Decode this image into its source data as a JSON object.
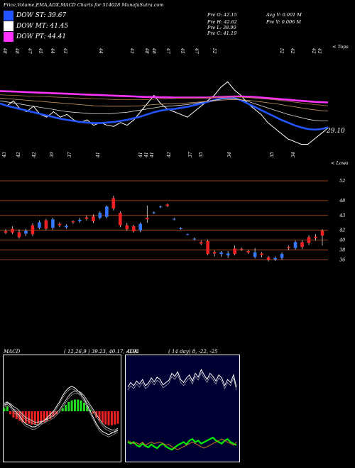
{
  "header": {
    "title": "Price,Volume,EMA,ADX,MACD Charts for 514028  MunafaSutra.com",
    "dma": [
      {
        "label": "DOW ST: 39.67",
        "color": "#2255ff"
      },
      {
        "label": "DOW MT: 41.45",
        "color": "#ffffff"
      },
      {
        "label": "DOW PT: 44.41",
        "color": "#ff33ff"
      }
    ],
    "ohlc": {
      "open": "Pre   O: 42.15",
      "high": "Pre   H: 42.62",
      "low": "Pre   L: 38.90",
      "close": "Pre   C: 41.19"
    },
    "volume": {
      "avg": "Avg V: 0.001 M",
      "pre": "Pre   V: 0.006  M"
    }
  },
  "chart_data": [
    {
      "type": "line",
      "panel": "price-ema",
      "labels": {
        "top_right": "< Tops",
        "bottom_right": "< Lows",
        "last_price": "29.10"
      },
      "top_ticks": [
        "48",
        "48",
        "47",
        "45",
        "44",
        "43",
        "44",
        "43",
        "48",
        "48",
        "47",
        "45",
        "47",
        "52",
        "52",
        "42",
        "42",
        "43"
      ],
      "bottom_ticks": [
        "43",
        "42",
        "42",
        "39",
        "37",
        "41",
        "41",
        "41",
        "41",
        "42",
        "37",
        "35",
        "34",
        "35",
        "34"
      ],
      "series": [
        {
          "color": "#ffffff",
          "values": [
            42,
            41.5,
            42.5,
            41,
            40.5,
            41.5,
            40,
            39.5,
            40.5,
            39.5,
            40,
            39,
            38.5,
            39,
            38,
            38.5,
            38,
            37.8,
            38.5,
            38,
            39,
            40.5,
            42,
            43.5,
            42,
            41,
            40.5,
            40,
            39.5,
            40.5,
            41.5,
            42.5,
            43.5,
            45,
            46,
            44.5,
            43.5,
            42,
            41,
            40,
            38.5,
            37.5,
            36.5,
            35.5,
            35,
            34.5,
            34.5,
            35.5,
            36.5,
            37.5
          ]
        },
        {
          "color": "#2255ff",
          "values": [
            42,
            41.6,
            41.3,
            41,
            40.7,
            40.4,
            40.1,
            39.8,
            39.5,
            39.2,
            39,
            38.8,
            38.6,
            38.5,
            38.4,
            38.4,
            38.5,
            38.6,
            38.8,
            39,
            39.3,
            39.6,
            40,
            40.4,
            40.7,
            40.9,
            41,
            41.2,
            41.4,
            41.7,
            42,
            42.3,
            42.6,
            42.9,
            43.1,
            43,
            42.6,
            42,
            41.4,
            40.8,
            40.2,
            39.6,
            39,
            38.5,
            38,
            37.6,
            37.3,
            37.2,
            37.3,
            37.6
          ]
        },
        {
          "color": "#dddddd",
          "values": [
            42.5,
            42.3,
            42.1,
            41.9,
            41.7,
            41.5,
            41.3,
            41.1,
            40.9,
            40.7,
            40.5,
            40.4,
            40.3,
            40.2,
            40.1,
            40.1,
            40.1,
            40.2,
            40.3,
            40.4,
            40.6,
            40.8,
            41,
            41.2,
            41.4,
            41.5,
            41.6,
            41.7,
            41.8,
            42,
            42.2,
            42.4,
            42.6,
            42.8,
            42.9,
            42.9,
            42.7,
            42.4,
            42,
            41.6,
            41.2,
            40.8,
            40.4,
            40,
            39.7,
            39.4,
            39.1,
            38.9,
            38.8,
            38.8
          ]
        },
        {
          "color": "#ff33ff",
          "values": [
            44.3,
            44.25,
            44.2,
            44.15,
            44.1,
            44.05,
            44,
            43.95,
            43.9,
            43.85,
            43.8,
            43.75,
            43.7,
            43.65,
            43.6,
            43.55,
            43.5,
            43.45,
            43.4,
            43.35,
            43.3,
            43.25,
            43.2,
            43.2,
            43.15,
            43.15,
            43.1,
            43.1,
            43.1,
            43.1,
            43.1,
            43.1,
            43.15,
            43.2,
            43.25,
            43.3,
            43.3,
            43.25,
            43.2,
            43.1,
            43,
            42.9,
            42.8,
            42.7,
            42.6,
            42.5,
            42.4,
            42.3,
            42.25,
            42.2
          ]
        },
        {
          "color": "#cc9966",
          "values": [
            43,
            42.9,
            42.8,
            42.7,
            42.6,
            42.5,
            42.4,
            42.3,
            42.2,
            42.1,
            42,
            41.9,
            41.8,
            41.7,
            41.6,
            41.55,
            41.5,
            41.5,
            41.5,
            41.5,
            41.55,
            41.6,
            41.7,
            41.8,
            41.9,
            41.95,
            42,
            42.05,
            42.1,
            42.2,
            42.3,
            42.4,
            42.5,
            42.6,
            42.7,
            42.75,
            42.7,
            42.6,
            42.45,
            42.3,
            42.15,
            42,
            41.8,
            41.6,
            41.4,
            41.2,
            41,
            40.85,
            40.7,
            40.6
          ]
        },
        {
          "color": "#aa7744",
          "values": [
            43.6,
            43.55,
            43.5,
            43.45,
            43.4,
            43.35,
            43.3,
            43.25,
            43.2,
            43.15,
            43.1,
            43.05,
            43,
            42.95,
            42.9,
            42.85,
            42.8,
            42.75,
            42.7,
            42.7,
            42.7,
            42.7,
            42.75,
            42.8,
            42.85,
            42.9,
            42.95,
            43,
            43,
            43,
            43,
            43.05,
            43.1,
            43.15,
            43.2,
            43.2,
            43.15,
            43.1,
            43,
            42.9,
            42.8,
            42.7,
            42.55,
            42.4,
            42.25,
            42.1,
            41.95,
            41.8,
            41.7,
            41.6
          ]
        }
      ],
      "ylim": [
        33,
        48
      ]
    },
    {
      "type": "bar",
      "panel": "candles",
      "gridlines": [
        52,
        48,
        45,
        42,
        40,
        38,
        36
      ],
      "axis_labels": [
        "52",
        "48",
        "43",
        "42",
        "40",
        "38",
        "36"
      ],
      "candles": [
        {
          "o": 41.5,
          "c": 41.8,
          "h": 42.2,
          "l": 41.2,
          "up": false
        },
        {
          "o": 41.5,
          "c": 42.3,
          "h": 42.8,
          "l": 41.2,
          "up": false
        },
        {
          "o": 40.6,
          "c": 41.6,
          "h": 42.2,
          "l": 40.3,
          "up": false
        },
        {
          "o": 41.9,
          "c": 41.3,
          "h": 42.3,
          "l": 40.8,
          "up": true
        },
        {
          "o": 43,
          "c": 41.2,
          "h": 43.4,
          "l": 40.8,
          "up": false
        },
        {
          "o": 42.5,
          "c": 43.6,
          "h": 44,
          "l": 42.2,
          "up": true
        },
        {
          "o": 44,
          "c": 42.3,
          "h": 44.3,
          "l": 42,
          "up": false
        },
        {
          "o": 42.5,
          "c": 44.2,
          "h": 44.5,
          "l": 42.1,
          "up": true
        },
        {
          "o": 43,
          "c": 43.3,
          "h": 43.6,
          "l": 42.6,
          "up": false
        },
        {
          "o": 42.6,
          "c": 42.9,
          "h": 43.2,
          "l": 42.3,
          "up": true
        },
        {
          "o": 43.8,
          "c": 43.6,
          "h": 44,
          "l": 43.3,
          "up": false
        },
        {
          "o": 44.1,
          "c": 43.8,
          "h": 44.5,
          "l": 43.5,
          "up": true
        },
        {
          "o": 44.3,
          "c": 44.6,
          "h": 45,
          "l": 44,
          "up": false
        },
        {
          "o": 43.8,
          "c": 44.8,
          "h": 45.2,
          "l": 43.4,
          "up": false
        },
        {
          "o": 44.5,
          "c": 45.5,
          "h": 45.8,
          "l": 44.2,
          "up": true
        },
        {
          "o": 44.7,
          "c": 46.8,
          "h": 47,
          "l": 44.4,
          "up": true
        },
        {
          "o": 48.5,
          "c": 46.4,
          "h": 49,
          "l": 46,
          "up": false
        },
        {
          "o": 45.5,
          "c": 43,
          "h": 45.8,
          "l": 42.6,
          "up": false
        },
        {
          "o": 43,
          "c": 42.2,
          "h": 43.5,
          "l": 41.9,
          "up": false
        },
        {
          "o": 42.8,
          "c": 41.8,
          "h": 43.1,
          "l": 41.5,
          "up": false
        },
        {
          "o": 42,
          "c": 43.3,
          "h": 43.6,
          "l": 41.6,
          "up": true
        },
        {
          "o": 44.5,
          "c": 44.2,
          "h": 47,
          "l": 43.5,
          "up": false
        },
        {
          "o": 45.6,
          "c": 45.5,
          "h": 45.8,
          "l": 45.3,
          "up": true
        },
        {
          "o": 46.8,
          "c": 46.7,
          "h": 47,
          "l": 46.5,
          "up": true
        },
        {
          "o": 47.2,
          "c": 46.9,
          "h": 47.4,
          "l": 46.7,
          "up": false
        },
        {
          "o": 44.3,
          "c": 44.2,
          "h": 44.5,
          "l": 44,
          "up": true
        },
        {
          "o": 42.4,
          "c": 42.3,
          "h": 42.6,
          "l": 42.1,
          "up": true
        },
        {
          "o": 41.2,
          "c": 41.1,
          "h": 41.3,
          "l": 41,
          "up": true
        },
        {
          "o": 40.3,
          "c": 40.2,
          "h": 40.5,
          "l": 40,
          "up": true
        },
        {
          "o": 39.6,
          "c": 39.3,
          "h": 39.9,
          "l": 39,
          "up": false
        },
        {
          "o": 39.8,
          "c": 37.2,
          "h": 40.1,
          "l": 36.9,
          "up": false
        },
        {
          "o": 37.6,
          "c": 37.3,
          "h": 37.9,
          "l": 36.7,
          "up": false
        },
        {
          "o": 37.2,
          "c": 37.5,
          "h": 37.8,
          "l": 36.6,
          "up": true
        },
        {
          "o": 36.9,
          "c": 37.3,
          "h": 37.8,
          "l": 36.4,
          "up": true
        },
        {
          "o": 38.3,
          "c": 37.2,
          "h": 38.9,
          "l": 36.9,
          "up": false
        },
        {
          "o": 38.1,
          "c": 38.2,
          "h": 38.5,
          "l": 37.8,
          "up": false
        },
        {
          "o": 37.5,
          "c": 37.8,
          "h": 38.1,
          "l": 37.2,
          "up": false
        },
        {
          "o": 37.5,
          "c": 36.6,
          "h": 38.4,
          "l": 36.3,
          "up": true
        },
        {
          "o": 37.3,
          "c": 37,
          "h": 37.6,
          "l": 36.5,
          "up": false
        },
        {
          "o": 36,
          "c": 36.5,
          "h": 36.8,
          "l": 35.7,
          "up": false
        },
        {
          "o": 36.1,
          "c": 36.4,
          "h": 36.7,
          "l": 35.8,
          "up": true
        },
        {
          "o": 37.2,
          "c": 36.4,
          "h": 37.5,
          "l": 36,
          "up": true
        },
        {
          "o": 38.6,
          "c": 38.4,
          "h": 38.9,
          "l": 38,
          "up": false
        },
        {
          "o": 38.4,
          "c": 39.6,
          "h": 39.9,
          "l": 38.1,
          "up": true
        },
        {
          "o": 38.6,
          "c": 39.6,
          "h": 40,
          "l": 38.2,
          "up": false
        },
        {
          "o": 40.6,
          "c": 39.4,
          "h": 41,
          "l": 39,
          "up": false
        },
        {
          "o": 40.7,
          "c": 40.4,
          "h": 41.2,
          "l": 39.9,
          "up": false
        },
        {
          "o": 41.9,
          "c": 40.9,
          "h": 42.2,
          "l": 38.9,
          "up": false
        }
      ],
      "ylim": [
        35.5,
        53
      ]
    },
    {
      "type": "bar",
      "panel": "macd",
      "title": "MACD",
      "params": "( 12,26,9 ) 39.23, 40.17, -0.94",
      "histogram": [
        0.2,
        0.3,
        -0.2,
        -0.4,
        -0.5,
        -0.6,
        -0.7,
        -0.75,
        -0.8,
        -0.85,
        -0.85,
        -0.8,
        -0.75,
        -0.7,
        -0.6,
        -0.5,
        -0.35,
        -0.2,
        0,
        0.2,
        0.4,
        0.6,
        0.7,
        0.75,
        0.75,
        0.7,
        0.55,
        0.35,
        0.1,
        -0.15,
        -0.4,
        -0.6,
        -0.75,
        -0.85,
        -0.9,
        -0.9,
        -0.85,
        -0.8
      ],
      "lines": [
        {
          "color": "#ffffff",
          "values": [
            0.5,
            0.6,
            0.4,
            0.1,
            -0.1,
            -0.3,
            -0.6,
            -0.8,
            -0.9,
            -1,
            -1,
            -0.9,
            -0.7,
            -0.6,
            -0.4,
            -0.2,
            0,
            0.3,
            0.6,
            1,
            1.3,
            1.5,
            1.6,
            1.5,
            1.3,
            1.1,
            0.8,
            0.4,
            0,
            -0.4,
            -0.8,
            -1.1,
            -1.3,
            -1.4,
            -1.5,
            -1.4,
            -1.3,
            -1.2
          ]
        },
        {
          "color": "#cccccc",
          "values": [
            0.4,
            0.5,
            0.5,
            0.3,
            0.2,
            0,
            -0.2,
            -0.4,
            -0.5,
            -0.6,
            -0.7,
            -0.7,
            -0.65,
            -0.6,
            -0.5,
            -0.4,
            -0.3,
            -0.1,
            0.1,
            0.4,
            0.7,
            1,
            1.2,
            1.3,
            1.3,
            1.2,
            1,
            0.7,
            0.4,
            0.1,
            -0.2,
            -0.5,
            -0.8,
            -1,
            -1.1,
            -1.2,
            -1.2,
            -1.1
          ]
        }
      ]
    },
    {
      "type": "line",
      "panel": "adx",
      "title": "ADX",
      "params": "( 14  day) 8, -22, -25",
      "series": [
        {
          "color": "#ffffff",
          "values": [
            12,
            18,
            14,
            20,
            16,
            22,
            14,
            17,
            24,
            19,
            25,
            22,
            15,
            18,
            21,
            30,
            26,
            32,
            22,
            18,
            24,
            28,
            20,
            30,
            25,
            35,
            28,
            22,
            30,
            26,
            20,
            28,
            24,
            14,
            22,
            18,
            28,
            12
          ]
        },
        {
          "color": "#00ee00",
          "values": [
            -60,
            -62,
            -60,
            -64,
            -66,
            -62,
            -65,
            -67,
            -63,
            -66,
            -68,
            -64,
            -62,
            -66,
            -68,
            -70,
            -67,
            -64,
            -62,
            -60,
            -63,
            -58,
            -56,
            -60,
            -58,
            -62,
            -60,
            -58,
            -56,
            -54,
            -58,
            -60,
            -62,
            -58,
            -56,
            -60,
            -62,
            -64
          ]
        },
        {
          "color": "#cc7722",
          "values": [
            -58,
            -60,
            -62,
            -61,
            -63,
            -60,
            -64,
            -62,
            -60,
            -62,
            -61,
            -60,
            -62,
            -64,
            -63,
            -66,
            -68,
            -70,
            -68,
            -66,
            -64,
            -62,
            -60,
            -62,
            -64,
            -66,
            -68,
            -66,
            -64,
            -62,
            -60,
            -58,
            -56,
            -58,
            -60,
            -62,
            -64,
            -60
          ]
        }
      ]
    }
  ]
}
